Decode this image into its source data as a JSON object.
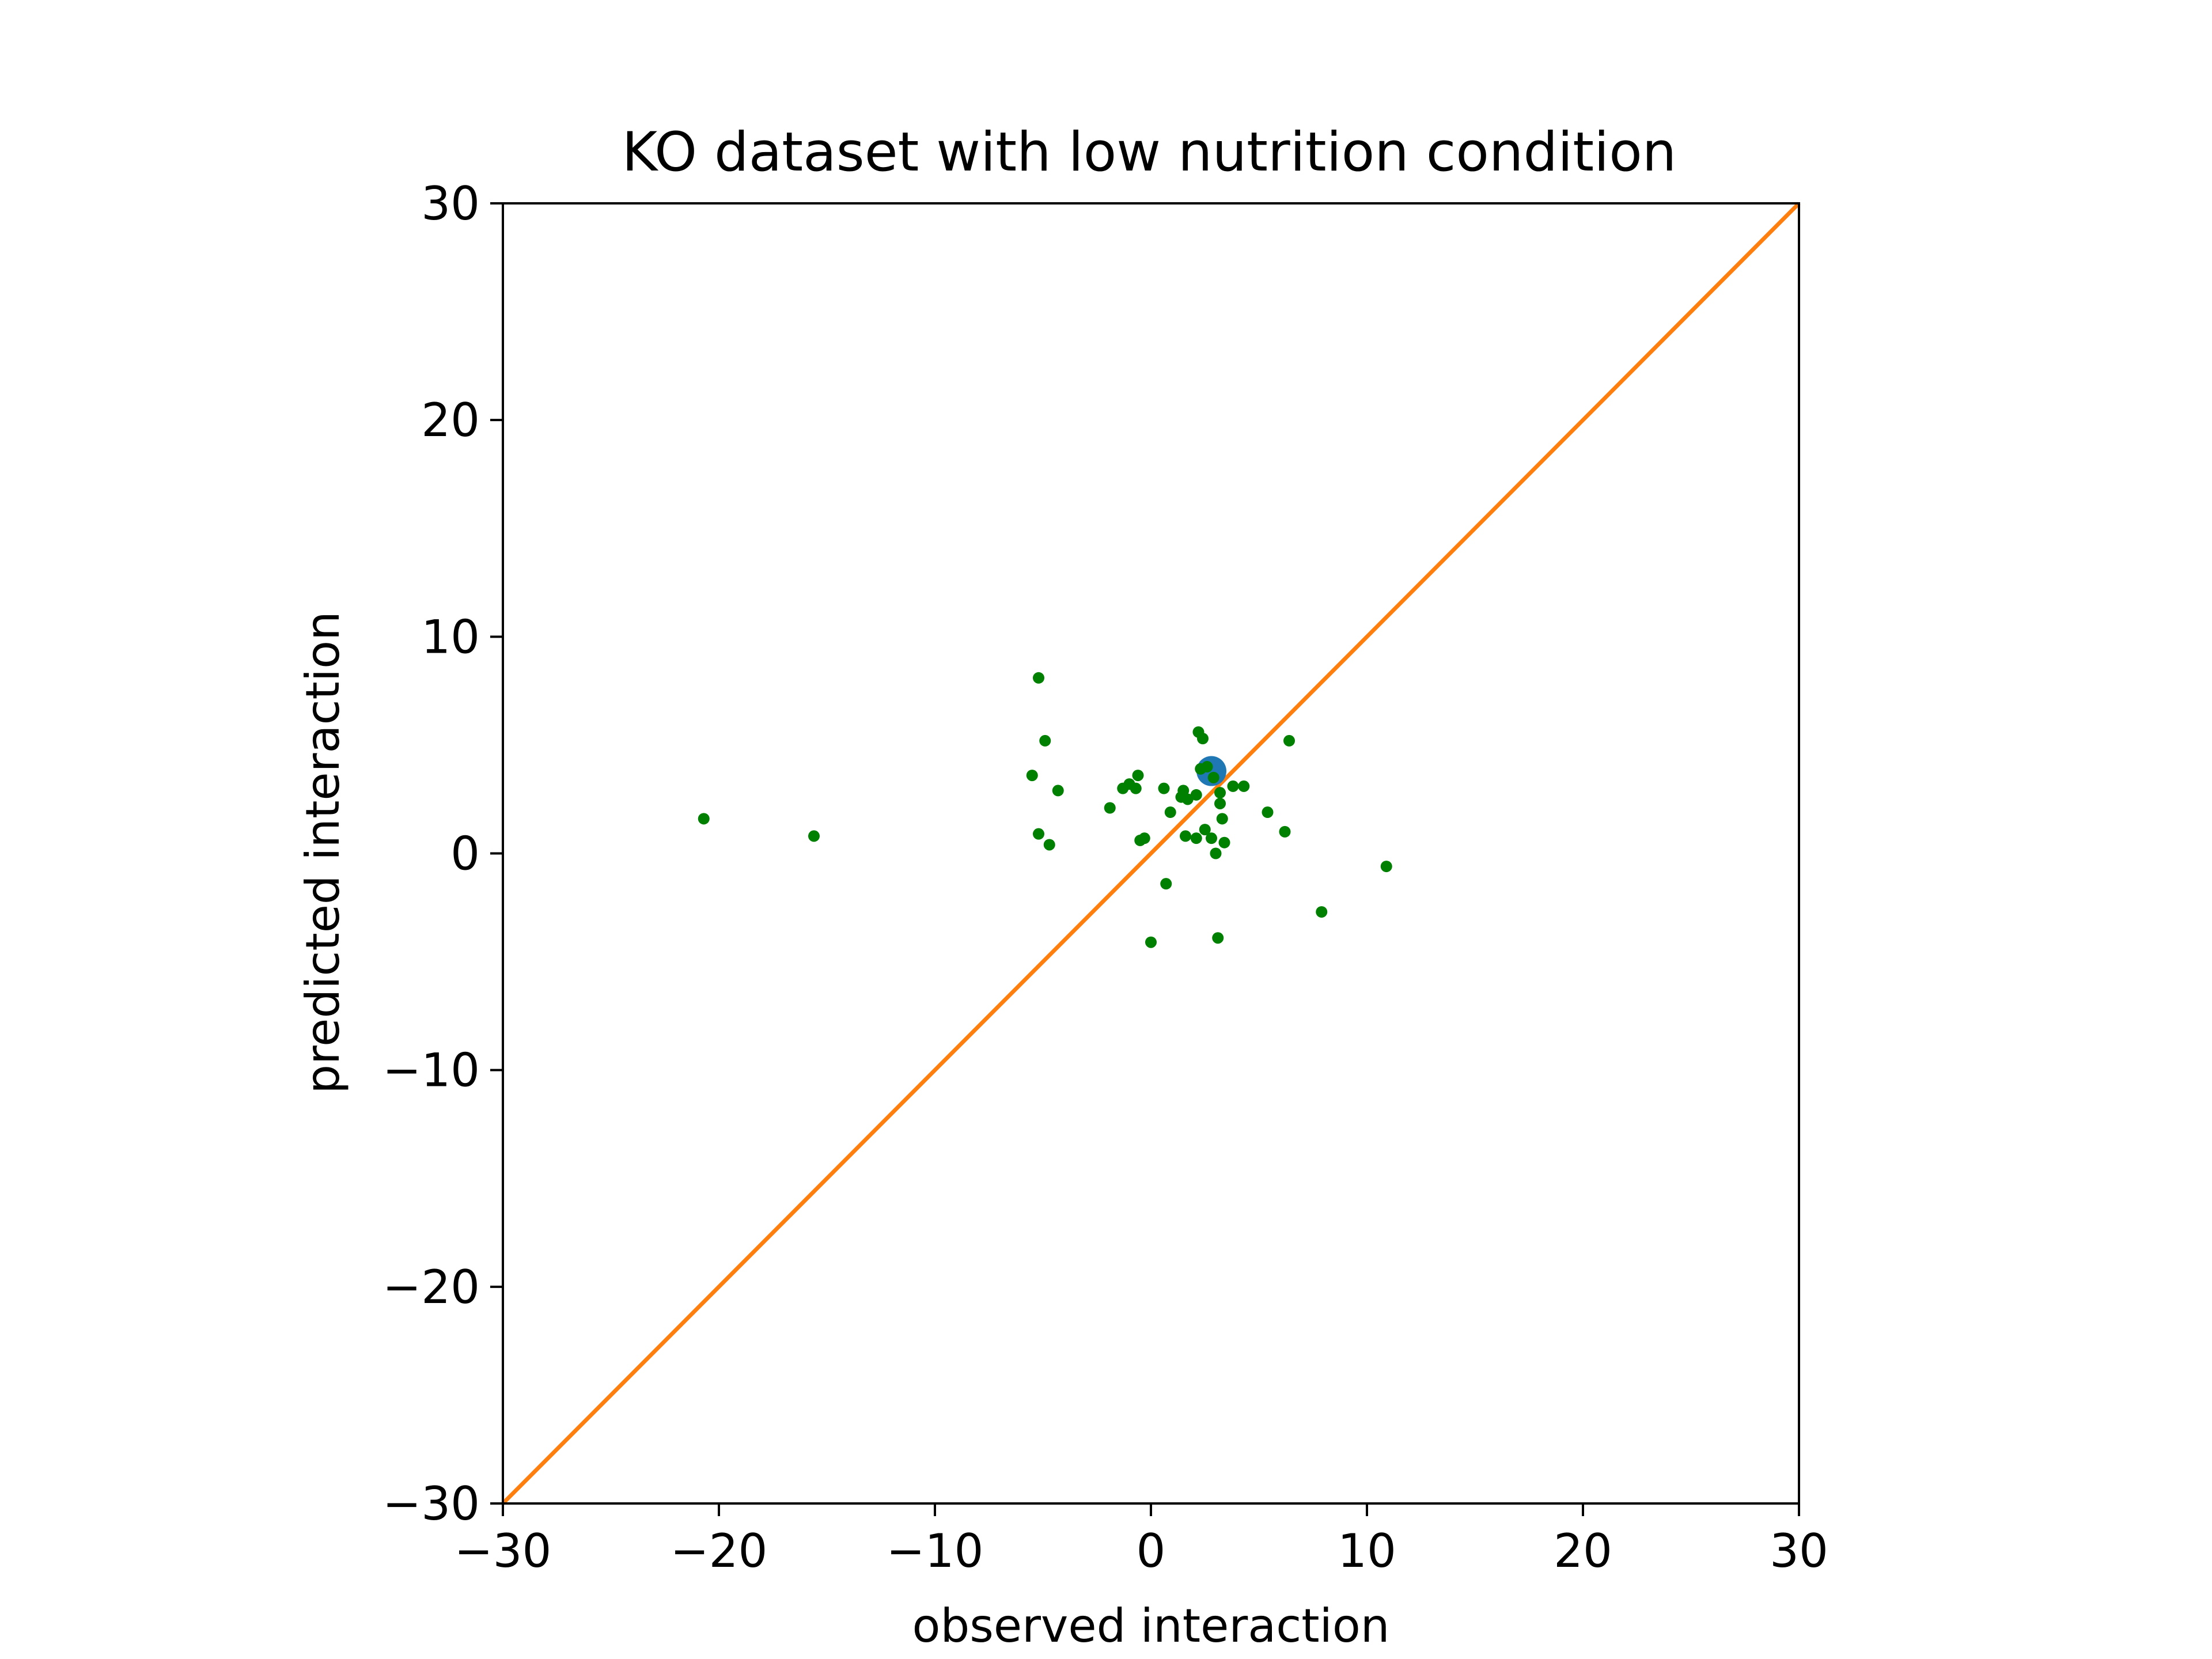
{
  "chart_data": {
    "type": "scatter",
    "title": "KO dataset with low nutrition condition",
    "xlabel": "observed interaction",
    "ylabel": "predicted interaction",
    "xlim": [
      -30,
      30
    ],
    "ylim": [
      -30,
      30
    ],
    "xticks": [
      -30,
      -20,
      -10,
      0,
      10,
      20,
      30
    ],
    "yticks": [
      -30,
      -20,
      -10,
      0,
      10,
      20,
      30
    ],
    "xtick_labels": [
      "−30",
      "−20",
      "−10",
      "0",
      "10",
      "20",
      "30"
    ],
    "ytick_labels": [
      "−30",
      "−20",
      "−10",
      "0",
      "10",
      "20",
      "30"
    ],
    "grid": false,
    "reference_line": {
      "from": [
        -30,
        -30
      ],
      "to": [
        30,
        30
      ],
      "color": "#ff7f0e"
    },
    "highlight_point": {
      "x": 2.8,
      "y": 3.8,
      "color": "#1f77b4"
    },
    "point_color": "#008000",
    "points": [
      {
        "x": -20.7,
        "y": 1.6
      },
      {
        "x": -15.6,
        "y": 0.8
      },
      {
        "x": -5.2,
        "y": 8.1
      },
      {
        "x": -4.9,
        "y": 5.2
      },
      {
        "x": -5.5,
        "y": 3.6
      },
      {
        "x": -4.3,
        "y": 2.9
      },
      {
        "x": -5.2,
        "y": 0.9
      },
      {
        "x": -4.7,
        "y": 0.4
      },
      {
        "x": -1.9,
        "y": 2.1
      },
      {
        "x": -1.3,
        "y": 3.0
      },
      {
        "x": -1.0,
        "y": 3.2
      },
      {
        "x": -0.7,
        "y": 3.0
      },
      {
        "x": -0.6,
        "y": 3.6
      },
      {
        "x": -0.5,
        "y": 0.6
      },
      {
        "x": -0.3,
        "y": 0.7
      },
      {
        "x": 0.0,
        "y": -4.1
      },
      {
        "x": 0.6,
        "y": 3.0
      },
      {
        "x": 0.7,
        "y": -1.4
      },
      {
        "x": 0.9,
        "y": 1.9
      },
      {
        "x": 1.4,
        "y": 2.6
      },
      {
        "x": 1.5,
        "y": 2.9
      },
      {
        "x": 1.6,
        "y": 0.8
      },
      {
        "x": 1.7,
        "y": 2.5
      },
      {
        "x": 2.1,
        "y": 2.7
      },
      {
        "x": 2.1,
        "y": 0.7
      },
      {
        "x": 2.2,
        "y": 5.6
      },
      {
        "x": 2.3,
        "y": 3.9
      },
      {
        "x": 2.4,
        "y": 5.3
      },
      {
        "x": 2.5,
        "y": 1.1
      },
      {
        "x": 2.6,
        "y": 4.0
      },
      {
        "x": 2.8,
        "y": 0.7
      },
      {
        "x": 2.9,
        "y": 3.5
      },
      {
        "x": 3.0,
        "y": 0.0
      },
      {
        "x": 3.1,
        "y": -3.9
      },
      {
        "x": 3.2,
        "y": 2.3
      },
      {
        "x": 3.2,
        "y": 2.8
      },
      {
        "x": 3.3,
        "y": 1.6
      },
      {
        "x": 3.4,
        "y": 0.5
      },
      {
        "x": 3.8,
        "y": 3.1
      },
      {
        "x": 4.3,
        "y": 3.1
      },
      {
        "x": 5.4,
        "y": 1.9
      },
      {
        "x": 6.2,
        "y": 1.0
      },
      {
        "x": 6.4,
        "y": 5.2
      },
      {
        "x": 7.9,
        "y": -2.7
      },
      {
        "x": 10.9,
        "y": -0.6
      }
    ]
  }
}
